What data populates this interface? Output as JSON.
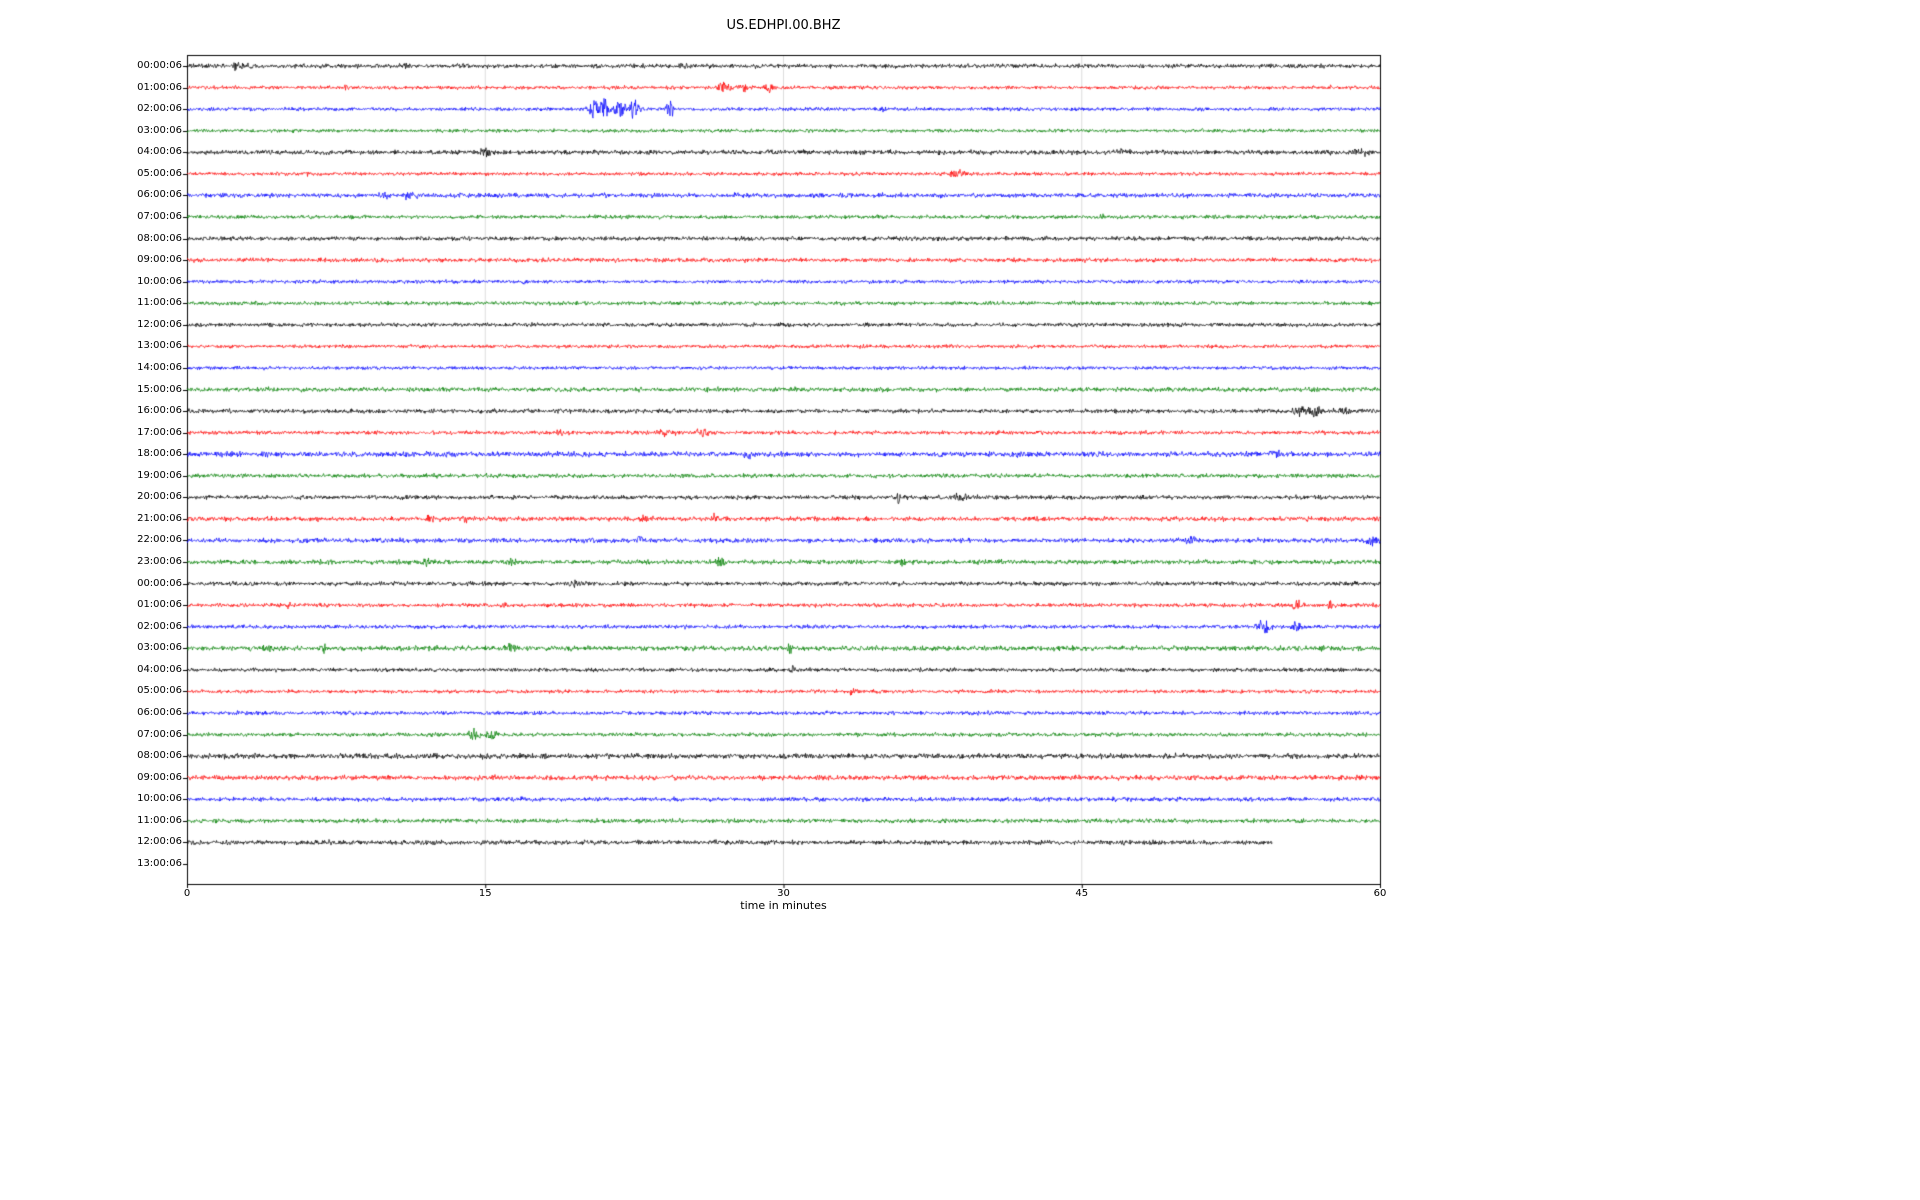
{
  "chart_data": {
    "type": "line",
    "subtype": "seismogram-dayplot",
    "title": "US.EDHPI.00.BHZ",
    "xlabel": "time in minutes",
    "xticks": [
      0,
      15,
      30,
      45,
      60
    ],
    "xlim": [
      0,
      60
    ],
    "grid": "vertical-light",
    "palette": {
      "black": "#000000",
      "red": "#ff0000",
      "blue": "#0000ff",
      "green": "#008000"
    },
    "rows": [
      {
        "label": "00:00:06",
        "color": "black",
        "noise": 1.2,
        "dur": 1,
        "events": [
          {
            "t": 2.5,
            "a": 5,
            "w": 0.3
          },
          {
            "t": 3.2,
            "a": 3,
            "w": 0.2
          },
          {
            "t": 11,
            "a": 2,
            "w": 0.3
          },
          {
            "t": 14,
            "a": 2,
            "w": 0.5
          },
          {
            "t": 25,
            "a": 1.8,
            "w": 0.4
          }
        ]
      },
      {
        "label": "01:00:06",
        "color": "red",
        "noise": 1.0,
        "dur": 1,
        "events": [
          {
            "t": 8,
            "a": 2.5,
            "w": 0.2
          },
          {
            "t": 27,
            "a": 5,
            "w": 0.4
          },
          {
            "t": 28,
            "a": 4,
            "w": 0.3
          },
          {
            "t": 29.3,
            "a": 5,
            "w": 0.25
          },
          {
            "t": 57.5,
            "a": 5,
            "w": 0.08
          }
        ]
      },
      {
        "label": "02:00:06",
        "color": "blue",
        "noise": 1.0,
        "dur": 1,
        "events": [
          {
            "t": 20.5,
            "a": 10,
            "w": 0.3
          },
          {
            "t": 21,
            "a": 13,
            "w": 0.25
          },
          {
            "t": 21.8,
            "a": 8,
            "w": 0.4
          },
          {
            "t": 22.5,
            "a": 9,
            "w": 0.3
          },
          {
            "t": 24.3,
            "a": 9,
            "w": 0.2
          },
          {
            "t": 35,
            "a": 4,
            "w": 0.2
          }
        ]
      },
      {
        "label": "03:00:06",
        "color": "green",
        "noise": 1.0,
        "dur": 1,
        "events": []
      },
      {
        "label": "04:00:06",
        "color": "black",
        "noise": 1.3,
        "dur": 1,
        "events": [
          {
            "t": 15,
            "a": 4,
            "w": 0.3
          },
          {
            "t": 29.5,
            "a": 2.5,
            "w": 0.3
          },
          {
            "t": 47,
            "a": 2.5,
            "w": 0.5
          },
          {
            "t": 59,
            "a": 3.5,
            "w": 0.5
          }
        ]
      },
      {
        "label": "05:00:06",
        "color": "red",
        "noise": 1.0,
        "dur": 1,
        "events": [
          {
            "t": 6,
            "a": 2,
            "w": 0.2
          },
          {
            "t": 38.7,
            "a": 3.5,
            "w": 0.5
          }
        ]
      },
      {
        "label": "06:00:06",
        "color": "blue",
        "noise": 1.3,
        "dur": 1,
        "events": [
          {
            "t": 10,
            "a": 3,
            "w": 0.4
          },
          {
            "t": 11.3,
            "a": 5,
            "w": 0.4
          }
        ]
      },
      {
        "label": "07:00:06",
        "color": "green",
        "noise": 1.1,
        "dur": 1,
        "events": [
          {
            "t": 46,
            "a": 3,
            "w": 0.1
          }
        ]
      },
      {
        "label": "08:00:06",
        "color": "black",
        "noise": 1.2,
        "dur": 1,
        "events": []
      },
      {
        "label": "09:00:06",
        "color": "red",
        "noise": 1.2,
        "dur": 1,
        "events": []
      },
      {
        "label": "10:00:06",
        "color": "blue",
        "noise": 1.0,
        "dur": 1,
        "events": [
          {
            "t": 17,
            "a": 2.5,
            "w": 0.15
          }
        ]
      },
      {
        "label": "11:00:06",
        "color": "green",
        "noise": 1.1,
        "dur": 1,
        "events": []
      },
      {
        "label": "12:00:06",
        "color": "black",
        "noise": 1.1,
        "dur": 1,
        "events": []
      },
      {
        "label": "13:00:06",
        "color": "red",
        "noise": 1.0,
        "dur": 1,
        "events": [
          {
            "t": 34,
            "a": 3,
            "w": 0.1
          }
        ]
      },
      {
        "label": "14:00:06",
        "color": "blue",
        "noise": 1.0,
        "dur": 1,
        "events": []
      },
      {
        "label": "15:00:06",
        "color": "green",
        "noise": 1.3,
        "dur": 1,
        "events": []
      },
      {
        "label": "16:00:06",
        "color": "black",
        "noise": 1.2,
        "dur": 1,
        "events": [
          {
            "t": 56,
            "a": 5,
            "w": 0.4
          },
          {
            "t": 56.8,
            "a": 6,
            "w": 0.4
          },
          {
            "t": 58.2,
            "a": 4,
            "w": 0.4
          }
        ]
      },
      {
        "label": "17:00:06",
        "color": "red",
        "noise": 1.1,
        "dur": 1,
        "events": [
          {
            "t": 18.7,
            "a": 2.5,
            "w": 0.3
          },
          {
            "t": 24,
            "a": 3.5,
            "w": 0.5
          },
          {
            "t": 26,
            "a": 3.5,
            "w": 0.4
          }
        ]
      },
      {
        "label": "18:00:06",
        "color": "blue",
        "noise": 1.5,
        "dur": 1,
        "events": [
          {
            "t": 2.5,
            "a": 2.5,
            "w": 0.3
          },
          {
            "t": 28.3,
            "a": 3.5,
            "w": 0.3
          },
          {
            "t": 41.8,
            "a": 2.5,
            "w": 0.2
          },
          {
            "t": 54.8,
            "a": 4,
            "w": 0.4
          }
        ]
      },
      {
        "label": "19:00:06",
        "color": "green",
        "noise": 1.2,
        "dur": 1,
        "events": []
      },
      {
        "label": "20:00:06",
        "color": "black",
        "noise": 1.2,
        "dur": 1,
        "events": [
          {
            "t": 35.8,
            "a": 6,
            "w": 0.1
          },
          {
            "t": 39,
            "a": 3.5,
            "w": 0.5
          }
        ]
      },
      {
        "label": "21:00:06",
        "color": "red",
        "noise": 1.3,
        "dur": 1,
        "events": [
          {
            "t": 12.2,
            "a": 3,
            "w": 0.3
          },
          {
            "t": 14,
            "a": 3.5,
            "w": 0.2
          },
          {
            "t": 23,
            "a": 3.5,
            "w": 0.3
          },
          {
            "t": 26.5,
            "a": 4,
            "w": 0.2
          }
        ]
      },
      {
        "label": "22:00:06",
        "color": "blue",
        "noise": 1.3,
        "dur": 1,
        "events": [
          {
            "t": 22.8,
            "a": 5,
            "w": 0.15
          },
          {
            "t": 50.5,
            "a": 3,
            "w": 0.4
          },
          {
            "t": 59.5,
            "a": 4.5,
            "w": 0.4
          }
        ]
      },
      {
        "label": "23:00:06",
        "color": "green",
        "noise": 1.3,
        "dur": 1,
        "events": [
          {
            "t": 12,
            "a": 3.5,
            "w": 0.3
          },
          {
            "t": 16.3,
            "a": 5,
            "w": 0.2
          },
          {
            "t": 26.8,
            "a": 5.5,
            "w": 0.2
          },
          {
            "t": 36,
            "a": 6,
            "w": 0.15
          }
        ]
      },
      {
        "label": "00:00:06",
        "color": "black",
        "noise": 1.2,
        "dur": 1,
        "events": [
          {
            "t": 19.5,
            "a": 3,
            "w": 0.4
          }
        ]
      },
      {
        "label": "01:00:06",
        "color": "red",
        "noise": 1.1,
        "dur": 1,
        "events": [
          {
            "t": 5,
            "a": 2,
            "w": 0.3
          },
          {
            "t": 16,
            "a": 3,
            "w": 0.2
          },
          {
            "t": 55.8,
            "a": 5,
            "w": 0.3
          },
          {
            "t": 57.5,
            "a": 4.5,
            "w": 0.15
          }
        ]
      },
      {
        "label": "02:00:06",
        "color": "blue",
        "noise": 1.1,
        "dur": 1,
        "events": [
          {
            "t": 54.2,
            "a": 7,
            "w": 0.4
          },
          {
            "t": 55.8,
            "a": 6,
            "w": 0.25
          }
        ]
      },
      {
        "label": "03:00:06",
        "color": "green",
        "noise": 1.4,
        "dur": 1,
        "events": [
          {
            "t": 4,
            "a": 4,
            "w": 0.3
          },
          {
            "t": 6.8,
            "a": 4.5,
            "w": 0.2
          },
          {
            "t": 16.3,
            "a": 5.5,
            "w": 0.25
          },
          {
            "t": 30.3,
            "a": 5,
            "w": 0.15
          }
        ]
      },
      {
        "label": "04:00:06",
        "color": "black",
        "noise": 1.1,
        "dur": 1,
        "events": [
          {
            "t": 30.5,
            "a": 4,
            "w": 0.2
          }
        ]
      },
      {
        "label": "05:00:06",
        "color": "red",
        "noise": 1.0,
        "dur": 1,
        "events": [
          {
            "t": 33.5,
            "a": 3,
            "w": 0.2
          }
        ]
      },
      {
        "label": "06:00:06",
        "color": "blue",
        "noise": 1.1,
        "dur": 1,
        "events": []
      },
      {
        "label": "07:00:06",
        "color": "green",
        "noise": 1.1,
        "dur": 1,
        "events": [
          {
            "t": 14.5,
            "a": 5,
            "w": 0.4
          },
          {
            "t": 15.3,
            "a": 6,
            "w": 0.3
          }
        ]
      },
      {
        "label": "08:00:06",
        "color": "black",
        "noise": 1.5,
        "dur": 1,
        "events": []
      },
      {
        "label": "09:00:06",
        "color": "red",
        "noise": 1.4,
        "dur": 1,
        "events": []
      },
      {
        "label": "10:00:06",
        "color": "blue",
        "noise": 1.2,
        "dur": 1,
        "events": []
      },
      {
        "label": "11:00:06",
        "color": "green",
        "noise": 1.2,
        "dur": 1,
        "events": []
      },
      {
        "label": "12:00:06",
        "color": "black",
        "noise": 1.3,
        "dur": 0.91,
        "events": [
          {
            "t": 47,
            "a": 2.5,
            "w": 0.1
          }
        ]
      },
      {
        "label": "13:00:06",
        "color": "black",
        "noise": 0,
        "dur": 0,
        "events": []
      }
    ]
  }
}
